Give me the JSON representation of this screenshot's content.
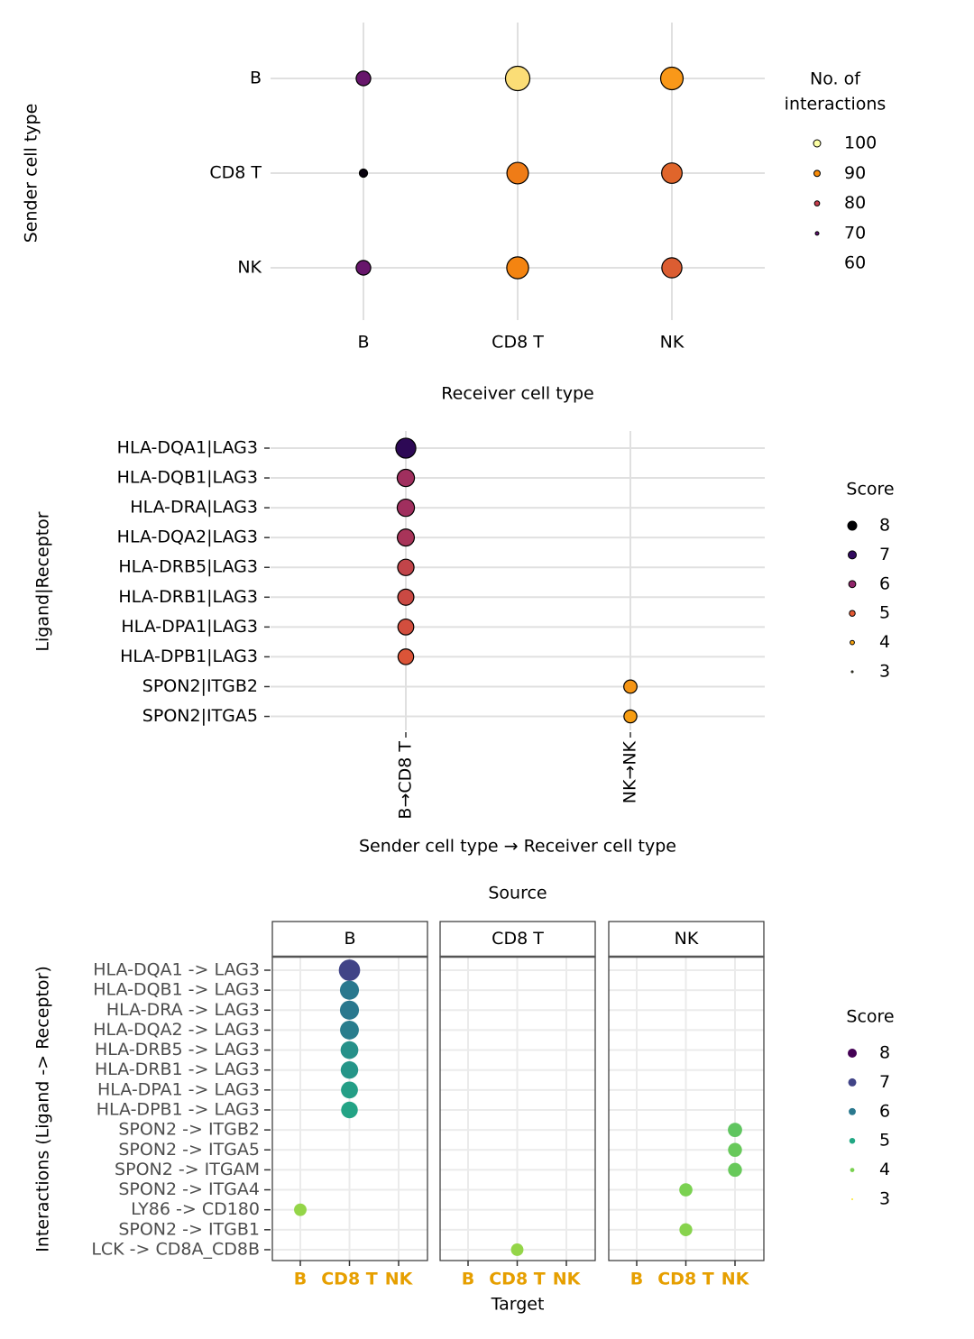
{
  "chart_data": [
    {
      "type": "dot",
      "x_label": "Receiver cell type",
      "y_label": "Sender cell type",
      "categories": [
        "B",
        "CD8 T",
        "NK"
      ],
      "series": [
        {
          "name": "B",
          "values": [
            71,
            61,
            71
          ]
        },
        {
          "name": "CD8 T",
          "values": [
            97,
            88,
            89
          ]
        },
        {
          "name": "NK",
          "values": [
            91,
            85,
            84
          ]
        }
      ],
      "legend_title": [
        "No. of",
        "interactions"
      ],
      "legend": [
        {
          "value": 100,
          "color": "#fcffa4"
        },
        {
          "value": 90,
          "color": "#f98c0a"
        },
        {
          "value": 80,
          "color": "#c73e4c"
        },
        {
          "value": 70,
          "color": "#5c126e"
        },
        {
          "value": 60,
          "color": "#000004"
        }
      ],
      "grid": true
    },
    {
      "type": "dot",
      "x_label": "Sender cell type → Receiver cell type",
      "y_label": "Ligand|Receptor",
      "rotate_x_labels": true,
      "categories": [
        "HLA-DQA1|LAG3",
        "HLA-DQB1|LAG3",
        "HLA-DRA|LAG3",
        "HLA-DQA2|LAG3",
        "HLA-DRB5|LAG3",
        "HLA-DRB1|LAG3",
        "HLA-DPA1|LAG3",
        "HLA-DPB1|LAG3",
        "SPON2|ITGB2",
        "SPON2|ITGA5"
      ],
      "series": [
        {
          "name": "B→CD8 T",
          "values": [
            7.1,
            5.8,
            5.8,
            5.7,
            5.4,
            5.3,
            5.2,
            5.1,
            null,
            null
          ]
        },
        {
          "name": "NK→NK",
          "values": [
            null,
            null,
            null,
            null,
            null,
            null,
            null,
            null,
            4.2,
            4.1
          ]
        }
      ],
      "legend_title": [
        "Score"
      ],
      "legend": [
        {
          "value": 8,
          "color": "#000004"
        },
        {
          "value": 7,
          "color": "#320a5e"
        },
        {
          "value": 6,
          "color": "#8f2469"
        },
        {
          "value": 5,
          "color": "#e35933"
        },
        {
          "value": 4,
          "color": "#f9a40e"
        },
        {
          "value": 3,
          "color": "#fcffa4"
        }
      ],
      "grid": true
    },
    {
      "type": "faceted_dot",
      "title": "Source",
      "x_label": "Target",
      "y_label": "Interactions (Ligand -> Receptor)",
      "x_tick_color": "#e69f00",
      "categories": [
        "HLA-DQA1 -> LAG3",
        "HLA-DQB1 -> LAG3",
        "HLA-DRA -> LAG3",
        "HLA-DQA2 -> LAG3",
        "HLA-DRB5 -> LAG3",
        "HLA-DRB1 -> LAG3",
        "HLA-DPA1 -> LAG3",
        "HLA-DPB1 -> LAG3",
        "SPON2 -> ITGB2",
        "SPON2 -> ITGA5",
        "SPON2 -> ITGAM",
        "SPON2 -> ITGA4",
        "LY86 -> CD180",
        "SPON2 -> ITGB1",
        "LCK -> CD8A_CD8B"
      ],
      "facets": [
        {
          "name": "B",
          "series": [
            {
              "name": "B",
              "values": [
                null,
                null,
                null,
                null,
                null,
                null,
                null,
                null,
                null,
                null,
                null,
                null,
                3.8,
                null,
                null
              ]
            },
            {
              "name": "CD8 T",
              "values": [
                7.0,
                6.0,
                6.0,
                5.9,
                5.5,
                5.4,
                5.2,
                5.1,
                null,
                null,
                null,
                null,
                null,
                null,
                null
              ]
            },
            {
              "name": "NK",
              "values": [
                null,
                null,
                null,
                null,
                null,
                null,
                null,
                null,
                null,
                null,
                null,
                null,
                null,
                null,
                null
              ]
            }
          ]
        },
        {
          "name": "CD8 T",
          "series": [
            {
              "name": "B",
              "values": [
                null,
                null,
                null,
                null,
                null,
                null,
                null,
                null,
                null,
                null,
                null,
                null,
                null,
                null,
                null
              ]
            },
            {
              "name": "CD8 T",
              "values": [
                null,
                null,
                null,
                null,
                null,
                null,
                null,
                null,
                null,
                null,
                null,
                null,
                null,
                null,
                3.8
              ]
            },
            {
              "name": "NK",
              "values": [
                null,
                null,
                null,
                null,
                null,
                null,
                null,
                null,
                null,
                null,
                null,
                null,
                null,
                null,
                null
              ]
            }
          ]
        },
        {
          "name": "NK",
          "series": [
            {
              "name": "B",
              "values": [
                null,
                null,
                null,
                null,
                null,
                null,
                null,
                null,
                null,
                null,
                null,
                null,
                null,
                null,
                null
              ]
            },
            {
              "name": "CD8 T",
              "values": [
                null,
                null,
                null,
                null,
                null,
                null,
                null,
                null,
                null,
                null,
                null,
                4.0,
                null,
                3.9,
                null
              ]
            },
            {
              "name": "NK",
              "values": [
                null,
                null,
                null,
                null,
                null,
                null,
                null,
                null,
                4.3,
                4.2,
                4.2,
                null,
                null,
                null,
                null
              ]
            }
          ]
        }
      ],
      "legend_title": [
        "Score"
      ],
      "legend": [
        {
          "value": 8,
          "color": "#440154"
        },
        {
          "value": 7,
          "color": "#414487"
        },
        {
          "value": 6,
          "color": "#2a788e"
        },
        {
          "value": 5,
          "color": "#22a884"
        },
        {
          "value": 4,
          "color": "#7ad151"
        },
        {
          "value": 3,
          "color": "#fde725"
        }
      ],
      "grid": true
    }
  ]
}
